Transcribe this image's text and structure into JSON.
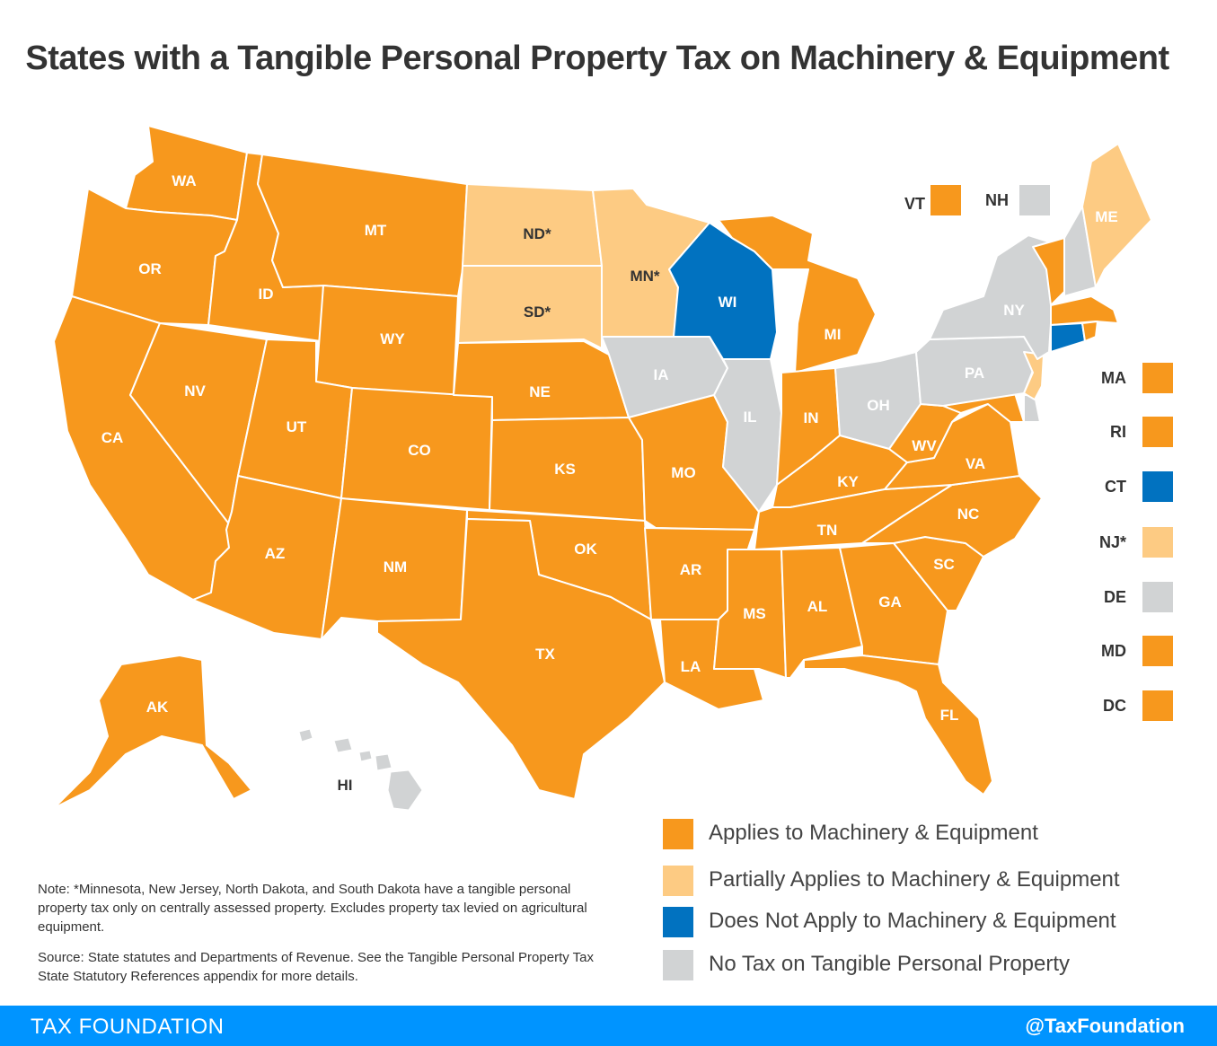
{
  "title": "States with a Tangible Personal Property Tax on Machinery & Equipment",
  "colors": {
    "applies": "#f7981d",
    "partial": "#fdcb83",
    "does_not": "#0172c0",
    "no_tax": "#d1d3d4"
  },
  "states": [
    {
      "code": "WA",
      "category": "applies"
    },
    {
      "code": "OR",
      "category": "applies"
    },
    {
      "code": "CA",
      "category": "applies"
    },
    {
      "code": "ID",
      "category": "applies"
    },
    {
      "code": "NV",
      "category": "applies"
    },
    {
      "code": "MT",
      "category": "applies"
    },
    {
      "code": "WY",
      "category": "applies"
    },
    {
      "code": "UT",
      "category": "applies"
    },
    {
      "code": "AZ",
      "category": "applies"
    },
    {
      "code": "CO",
      "category": "applies"
    },
    {
      "code": "NM",
      "category": "applies"
    },
    {
      "code": "ND*",
      "category": "partial"
    },
    {
      "code": "SD*",
      "category": "partial"
    },
    {
      "code": "NE",
      "category": "applies"
    },
    {
      "code": "KS",
      "category": "applies"
    },
    {
      "code": "OK",
      "category": "applies"
    },
    {
      "code": "TX",
      "category": "applies"
    },
    {
      "code": "MN*",
      "category": "partial"
    },
    {
      "code": "IA",
      "category": "no_tax"
    },
    {
      "code": "MO",
      "category": "applies"
    },
    {
      "code": "AR",
      "category": "applies"
    },
    {
      "code": "LA",
      "category": "applies"
    },
    {
      "code": "WI",
      "category": "does_not"
    },
    {
      "code": "IL",
      "category": "no_tax"
    },
    {
      "code": "MI",
      "category": "applies"
    },
    {
      "code": "IN",
      "category": "applies"
    },
    {
      "code": "OH",
      "category": "no_tax"
    },
    {
      "code": "KY",
      "category": "applies"
    },
    {
      "code": "TN",
      "category": "applies"
    },
    {
      "code": "MS",
      "category": "applies"
    },
    {
      "code": "AL",
      "category": "applies"
    },
    {
      "code": "GA",
      "category": "applies"
    },
    {
      "code": "FL",
      "category": "applies"
    },
    {
      "code": "SC",
      "category": "applies"
    },
    {
      "code": "NC",
      "category": "applies"
    },
    {
      "code": "VA",
      "category": "applies"
    },
    {
      "code": "WV",
      "category": "applies"
    },
    {
      "code": "PA",
      "category": "no_tax"
    },
    {
      "code": "NY",
      "category": "no_tax"
    },
    {
      "code": "ME",
      "category": "partial"
    },
    {
      "code": "AK",
      "category": "applies"
    },
    {
      "code": "HI",
      "category": "no_tax"
    }
  ],
  "small_states_top": [
    {
      "code": "VT",
      "category": "applies"
    },
    {
      "code": "NH",
      "category": "no_tax"
    }
  ],
  "small_states_side": [
    {
      "code": "MA",
      "category": "applies"
    },
    {
      "code": "RI",
      "category": "applies"
    },
    {
      "code": "CT",
      "category": "does_not"
    },
    {
      "code": "NJ*",
      "category": "partial"
    },
    {
      "code": "DE",
      "category": "no_tax"
    },
    {
      "code": "MD",
      "category": "applies"
    },
    {
      "code": "DC",
      "category": "applies"
    }
  ],
  "legend": [
    {
      "category": "applies",
      "label": "Applies to Machinery & Equipment"
    },
    {
      "category": "partial",
      "label": "Partially Applies to Machinery & Equipment"
    },
    {
      "category": "does_not",
      "label": "Does Not Apply to Machinery & Equipment"
    },
    {
      "category": "no_tax",
      "label": "No Tax on Tangible Personal Property"
    }
  ],
  "note": "Note: *Minnesota, New Jersey, North Dakota, and South Dakota have a tangible personal property tax only on centrally assessed property. Excludes property tax levied on agricultural equipment.",
  "source": "Source: State statutes and Departments of Revenue. See the Tangible Personal Property Tax State Statutory References appendix for more details.",
  "footer": {
    "left": "TAX FOUNDATION",
    "right": "@TaxFoundation"
  }
}
